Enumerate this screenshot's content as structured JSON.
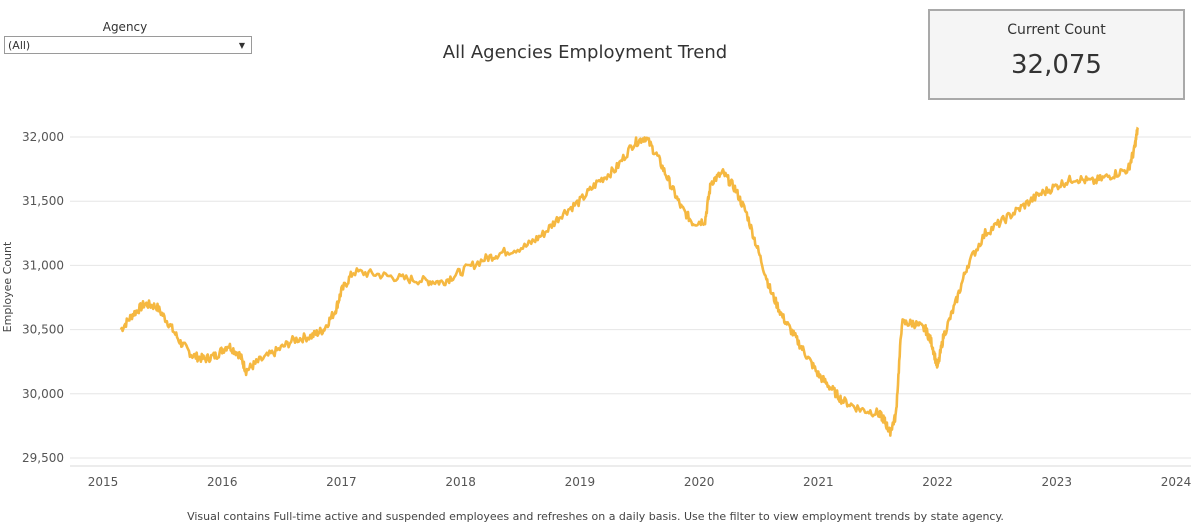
{
  "filter": {
    "label": "Agency",
    "value": "(All)"
  },
  "title": "All Agencies Employment Trend",
  "card": {
    "label": "Current Count",
    "value": "32,075"
  },
  "footnote": "Visual contains Full-time active and suspended employees and refreshes on a daily basis. Use the filter to view employment trends by state agency.",
  "colors": {
    "line": "#F5B841",
    "grid": "#e6e6e6",
    "text": "#333333"
  },
  "chart_data": {
    "type": "line",
    "title": "All Agencies Employment Trend",
    "xlabel": "",
    "ylabel": "Employee Count",
    "xlim": [
      2015,
      2024
    ],
    "ylim": [
      29500,
      32200
    ],
    "x_ticks": [
      "2015",
      "2016",
      "2017",
      "2018",
      "2019",
      "2020",
      "2021",
      "2022",
      "2023",
      "2024"
    ],
    "y_ticks": [
      "29,500",
      "30,000",
      "30,500",
      "31,000",
      "31,500",
      "32,000"
    ],
    "y_tick_values": [
      29500,
      30000,
      30500,
      31000,
      31500,
      32000
    ],
    "grid": "horizontal",
    "series": [
      {
        "name": "",
        "x": [
          2015.15,
          2015.25,
          2015.35,
          2015.45,
          2015.55,
          2015.65,
          2015.75,
          2015.85,
          2015.95,
          2016.05,
          2016.15,
          2016.2,
          2016.3,
          2016.45,
          2016.6,
          2016.75,
          2016.85,
          2016.95,
          2017.0,
          2017.1,
          2017.3,
          2017.5,
          2017.7,
          2017.85,
          2018.0,
          2018.2,
          2018.35,
          2018.55,
          2018.7,
          2018.85,
          2019.0,
          2019.15,
          2019.3,
          2019.45,
          2019.55,
          2019.65,
          2019.75,
          2019.85,
          2019.95,
          2020.05,
          2020.1,
          2020.2,
          2020.3,
          2020.4,
          2020.5,
          2020.6,
          2020.7,
          2020.8,
          2020.9,
          2021.0,
          2021.1,
          2021.2,
          2021.35,
          2021.5,
          2021.55,
          2021.6,
          2021.65,
          2021.7,
          2021.8,
          2021.9,
          2021.95,
          2022.0,
          2022.05,
          2022.15,
          2022.25,
          2022.4,
          2022.55,
          2022.7,
          2022.85,
          2023.0,
          2023.15,
          2023.3,
          2023.45,
          2023.6,
          2023.65,
          2023.68
        ],
        "values": [
          30500,
          30620,
          30700,
          30680,
          30550,
          30400,
          30300,
          30270,
          30300,
          30380,
          30300,
          30180,
          30250,
          30330,
          30420,
          30450,
          30500,
          30650,
          30800,
          30950,
          30930,
          30900,
          30880,
          30870,
          30950,
          31050,
          31100,
          31150,
          31250,
          31400,
          31500,
          31650,
          31750,
          31950,
          32000,
          31850,
          31650,
          31450,
          31330,
          31350,
          31650,
          31720,
          31600,
          31400,
          31100,
          30800,
          30600,
          30450,
          30300,
          30150,
          30050,
          29950,
          29880,
          29850,
          29800,
          29700,
          29830,
          30550,
          30550,
          30500,
          30400,
          30200,
          30450,
          30700,
          31000,
          31250,
          31350,
          31450,
          31550,
          31620,
          31680,
          31650,
          31700,
          31750,
          31900,
          32075
        ]
      }
    ]
  }
}
